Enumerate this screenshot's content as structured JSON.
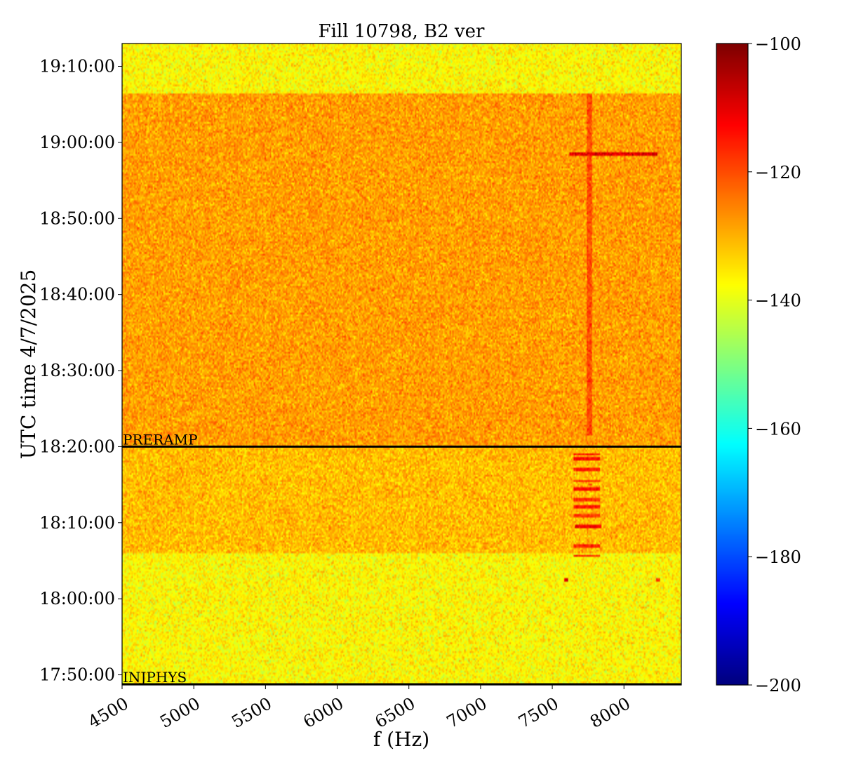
{
  "chart_data": {
    "type": "heatmap",
    "title": "Fill 10798, B2 ver",
    "xlabel": "f (Hz)",
    "ylabel": "UTC time 4/7/2025",
    "xlim": [
      4500,
      8400
    ],
    "x_ticks": [
      4500,
      5000,
      5500,
      6000,
      6500,
      7000,
      7500,
      8000
    ],
    "x_tick_labels": [
      "4500",
      "5000",
      "5500",
      "6000",
      "6500",
      "7000",
      "7500",
      "8000"
    ],
    "ylim": [
      "17:48:40",
      "19:13:00"
    ],
    "y_ticks": [
      "17:50:00",
      "18:00:00",
      "18:10:00",
      "18:20:00",
      "18:30:00",
      "18:40:00",
      "18:50:00",
      "19:00:00",
      "19:10:00"
    ],
    "colorbar": {
      "colormap": "jet",
      "vmin": -200,
      "vmax": -100,
      "ticks": [
        -100,
        -120,
        -140,
        -160,
        -180,
        -200
      ],
      "tick_labels": [
        "−100",
        "−120",
        "−140",
        "−160",
        "−180",
        "−200"
      ]
    },
    "markers": [
      {
        "label": "PRERAMP",
        "time": "18:20:00"
      },
      {
        "label": "INJPHYS",
        "time": "17:48:40"
      }
    ],
    "regions": [
      {
        "from": "17:48:40",
        "to": "18:06:00",
        "level_db": -137
      },
      {
        "from": "18:06:00",
        "to": "18:20:00",
        "level_db": -131
      },
      {
        "from": "18:20:00",
        "to": "19:06:30",
        "level_db": -128
      },
      {
        "from": "19:06:30",
        "to": "19:13:00",
        "level_db": -137
      }
    ],
    "features": [
      {
        "type": "spectral line",
        "f_hz": 7760,
        "from": "18:21:30",
        "to": "19:06:30",
        "level_db": -120
      },
      {
        "type": "burst",
        "f_hz": 7740,
        "time": "18:05:40",
        "level_db": -115
      },
      {
        "type": "burst",
        "f_hz": 7740,
        "time": "18:07:00",
        "level_db": -116
      },
      {
        "type": "burst",
        "f_hz": 7750,
        "time": "18:09:30",
        "level_db": -112
      },
      {
        "type": "burst",
        "f_hz": 7740,
        "time": "18:11:00",
        "level_db": -118
      },
      {
        "type": "burst",
        "f_hz": 7740,
        "time": "18:12:00",
        "level_db": -115
      },
      {
        "type": "burst",
        "f_hz": 7740,
        "time": "18:13:00",
        "level_db": -117
      },
      {
        "type": "burst",
        "f_hz": 7740,
        "time": "18:14:30",
        "level_db": -113
      },
      {
        "type": "burst",
        "f_hz": 7740,
        "time": "18:15:30",
        "level_db": -117
      },
      {
        "type": "burst",
        "f_hz": 7740,
        "time": "18:17:00",
        "level_db": -115
      },
      {
        "type": "burst",
        "f_hz": 7740,
        "time": "18:18:20",
        "level_db": -113
      },
      {
        "type": "burst",
        "f_hz": 7740,
        "time": "18:19:00",
        "level_db": -115
      },
      {
        "type": "line segment",
        "f_from": 7620,
        "f_to": 8230,
        "time": "18:58:30",
        "level_db": -110
      },
      {
        "type": "dot",
        "f_hz": 7600,
        "time": "18:02:30",
        "level_db": -110
      },
      {
        "type": "dot",
        "f_hz": 7760,
        "time": "18:15:00",
        "level_db": -118
      },
      {
        "type": "dot",
        "f_hz": 8240,
        "time": "18:02:30",
        "level_db": -118
      }
    ]
  }
}
